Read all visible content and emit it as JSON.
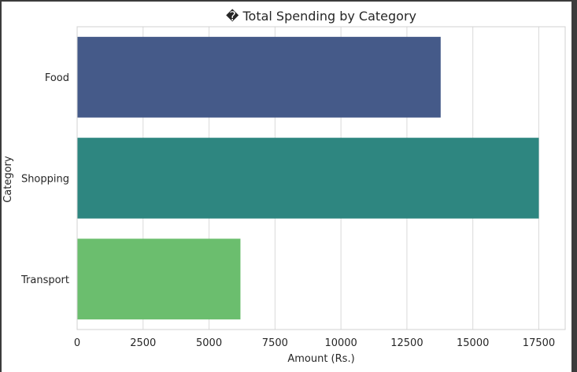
{
  "chart_data": {
    "type": "bar",
    "orientation": "horizontal",
    "title": "� Total Spending by Category",
    "xlabel": "Amount (Rs.)",
    "ylabel": "Category",
    "categories": [
      "Food",
      "Shopping",
      "Transport"
    ],
    "values": [
      13780,
      17500,
      6190
    ],
    "colors": [
      "#455a89",
      "#2e8680",
      "#6bbe6e"
    ],
    "xlim": [
      0,
      18500
    ],
    "xticks": [
      0,
      2500,
      5000,
      7500,
      10000,
      12500,
      15000,
      17500
    ],
    "grid": true
  }
}
